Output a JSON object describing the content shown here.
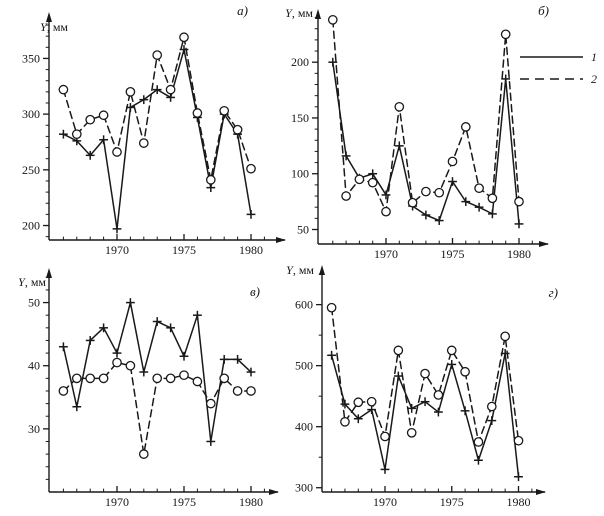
{
  "figure": {
    "background": "#ffffff",
    "ink": "#191919",
    "marker_fill": "#ffffff"
  },
  "legend": {
    "items": [
      {
        "label": "1",
        "line": "solid",
        "marker": "plus"
      },
      {
        "label": "2",
        "line": "dashed",
        "marker": "circle"
      }
    ]
  },
  "chart_data": [
    {
      "id": "a",
      "panel_label": "а)",
      "ylabel": "Y, мм",
      "type": "line",
      "x_years": [
        1966,
        1967,
        1968,
        1969,
        1970,
        1971,
        1972,
        1973,
        1974,
        1975,
        1976,
        1977,
        1978,
        1979,
        1980
      ],
      "x_ticks_labeled": [
        1970,
        1975,
        1980
      ],
      "y_ticks": [
        200,
        250,
        300,
        350
      ],
      "y_minor_from": 190,
      "y_minor_to": 380,
      "y_minor_step": 10,
      "ylim": [
        187,
        389
      ],
      "series": [
        {
          "name": "1",
          "line": "solid",
          "marker": "plus",
          "values": [
            282,
            276,
            263,
            277,
            197,
            306,
            313,
            322,
            315,
            358,
            297,
            234,
            300,
            282,
            210
          ]
        },
        {
          "name": "2",
          "line": "dashed",
          "marker": "circle",
          "values": [
            322,
            282,
            295,
            299,
            266,
            320,
            274,
            353,
            322,
            369,
            301,
            241,
            303,
            286,
            251
          ]
        }
      ]
    },
    {
      "id": "b",
      "panel_label": "б)",
      "ylabel": "Y, мм",
      "type": "line",
      "x_years": [
        1966,
        1967,
        1968,
        1969,
        1970,
        1971,
        1972,
        1973,
        1974,
        1975,
        1976,
        1977,
        1978,
        1979,
        1980
      ],
      "x_ticks_labeled": [
        1970,
        1975,
        1980
      ],
      "y_ticks": [
        50,
        100,
        150,
        200
      ],
      "y_minor_from": 60,
      "y_minor_to": 240,
      "y_minor_step": 10,
      "ylim": [
        37,
        245
      ],
      "has_legend": true,
      "series": [
        {
          "name": "1",
          "line": "solid",
          "marker": "plus",
          "values": [
            200,
            116,
            96,
            100,
            81,
            125,
            71,
            63,
            58,
            93,
            75,
            70,
            64,
            185,
            55
          ]
        },
        {
          "name": "2",
          "line": "dashed",
          "marker": "circle",
          "values": [
            238,
            80,
            95,
            92,
            66,
            160,
            74,
            84,
            83,
            111,
            142,
            87,
            78,
            225,
            75
          ]
        }
      ]
    },
    {
      "id": "v",
      "panel_label": "в)",
      "ylabel": "Y, мм",
      "type": "line",
      "x_years": [
        1966,
        1967,
        1968,
        1969,
        1970,
        1971,
        1972,
        1973,
        1974,
        1975,
        1976,
        1977,
        1978,
        1979,
        1980
      ],
      "x_ticks_labeled": [
        1970,
        1975,
        1980
      ],
      "y_ticks": [
        30,
        40,
        50
      ],
      "y_minor_from": 22,
      "y_minor_to": 54,
      "y_minor_step": 2,
      "ylim": [
        20,
        55
      ],
      "series": [
        {
          "name": "1",
          "line": "solid",
          "marker": "plus",
          "values": [
            43,
            33.5,
            44,
            46,
            42,
            50,
            39,
            47,
            46,
            41.5,
            48,
            28,
            41,
            41,
            39
          ]
        },
        {
          "name": "2",
          "line": "dashed",
          "marker": "circle",
          "values": [
            36,
            38,
            38,
            38,
            40.5,
            40,
            26,
            38,
            38,
            38.5,
            37.5,
            34,
            38,
            36,
            36
          ]
        }
      ]
    },
    {
      "id": "g",
      "panel_label": "г)",
      "ylabel": "Y, мм",
      "type": "line",
      "x_years": [
        1966,
        1967,
        1968,
        1969,
        1970,
        1971,
        1972,
        1973,
        1974,
        1975,
        1976,
        1977,
        1978,
        1979,
        1980
      ],
      "x_ticks_labeled": [
        1970,
        1975,
        1980
      ],
      "y_ticks": [
        300,
        400,
        500,
        600
      ],
      "y_minor_from": 350,
      "y_minor_to": 650,
      "y_minor_step": 50,
      "ylim": [
        293,
        660
      ],
      "series": [
        {
          "name": "1",
          "line": "solid",
          "marker": "plus",
          "values": [
            517,
            437,
            413,
            428,
            330,
            483,
            430,
            441,
            424,
            502,
            426,
            345,
            410,
            520,
            318
          ]
        },
        {
          "name": "2",
          "line": "dashed",
          "marker": "circle",
          "values": [
            595,
            408,
            440,
            441,
            384,
            525,
            390,
            487,
            452,
            525,
            490,
            375,
            433,
            548,
            377
          ]
        }
      ]
    }
  ]
}
